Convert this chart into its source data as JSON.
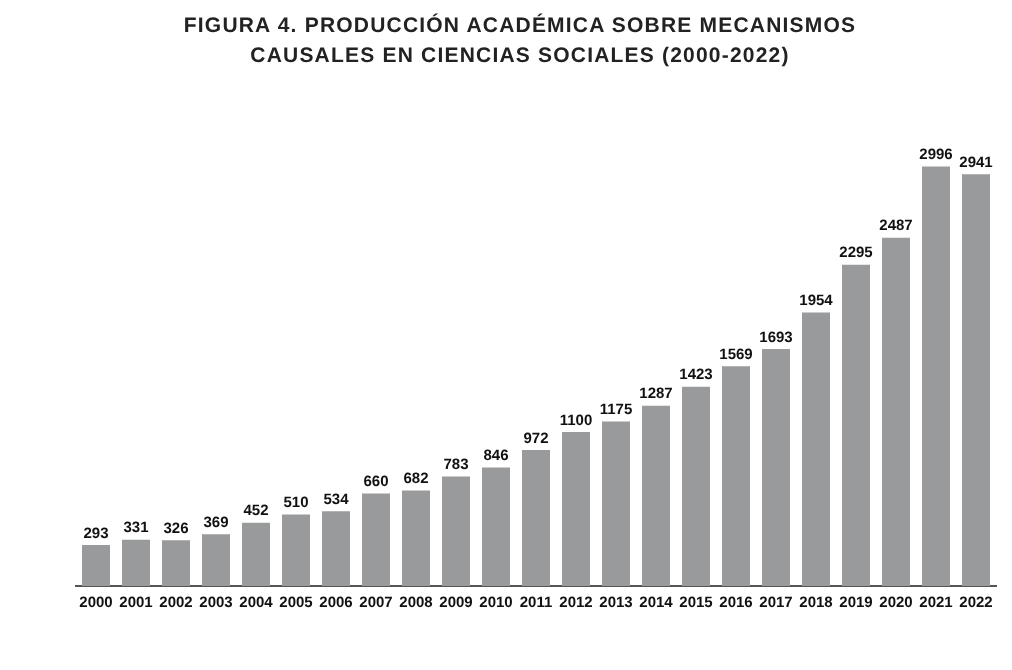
{
  "chart_data": {
    "type": "bar",
    "title": "FIGURA 4. PRODUCCIÓN ACADÉMICA SOBRE MECANISMOS CAUSALES EN CIENCIAS SOCIALES (2000-2022)",
    "categories": [
      "2000",
      "2001",
      "2002",
      "2003",
      "2004",
      "2005",
      "2006",
      "2007",
      "2008",
      "2009",
      "2010",
      "2011",
      "2012",
      "2013",
      "2014",
      "2015",
      "2016",
      "2017",
      "2018",
      "2019",
      "2020",
      "2021",
      "2022"
    ],
    "values": [
      293,
      331,
      326,
      369,
      452,
      510,
      534,
      660,
      682,
      783,
      846,
      972,
      1100,
      1175,
      1287,
      1423,
      1569,
      1693,
      1954,
      2295,
      2487,
      2996,
      2941
    ],
    "color": "#999a9c",
    "data_labels": true,
    "relative": false,
    "grid": false,
    "legend": false
  }
}
